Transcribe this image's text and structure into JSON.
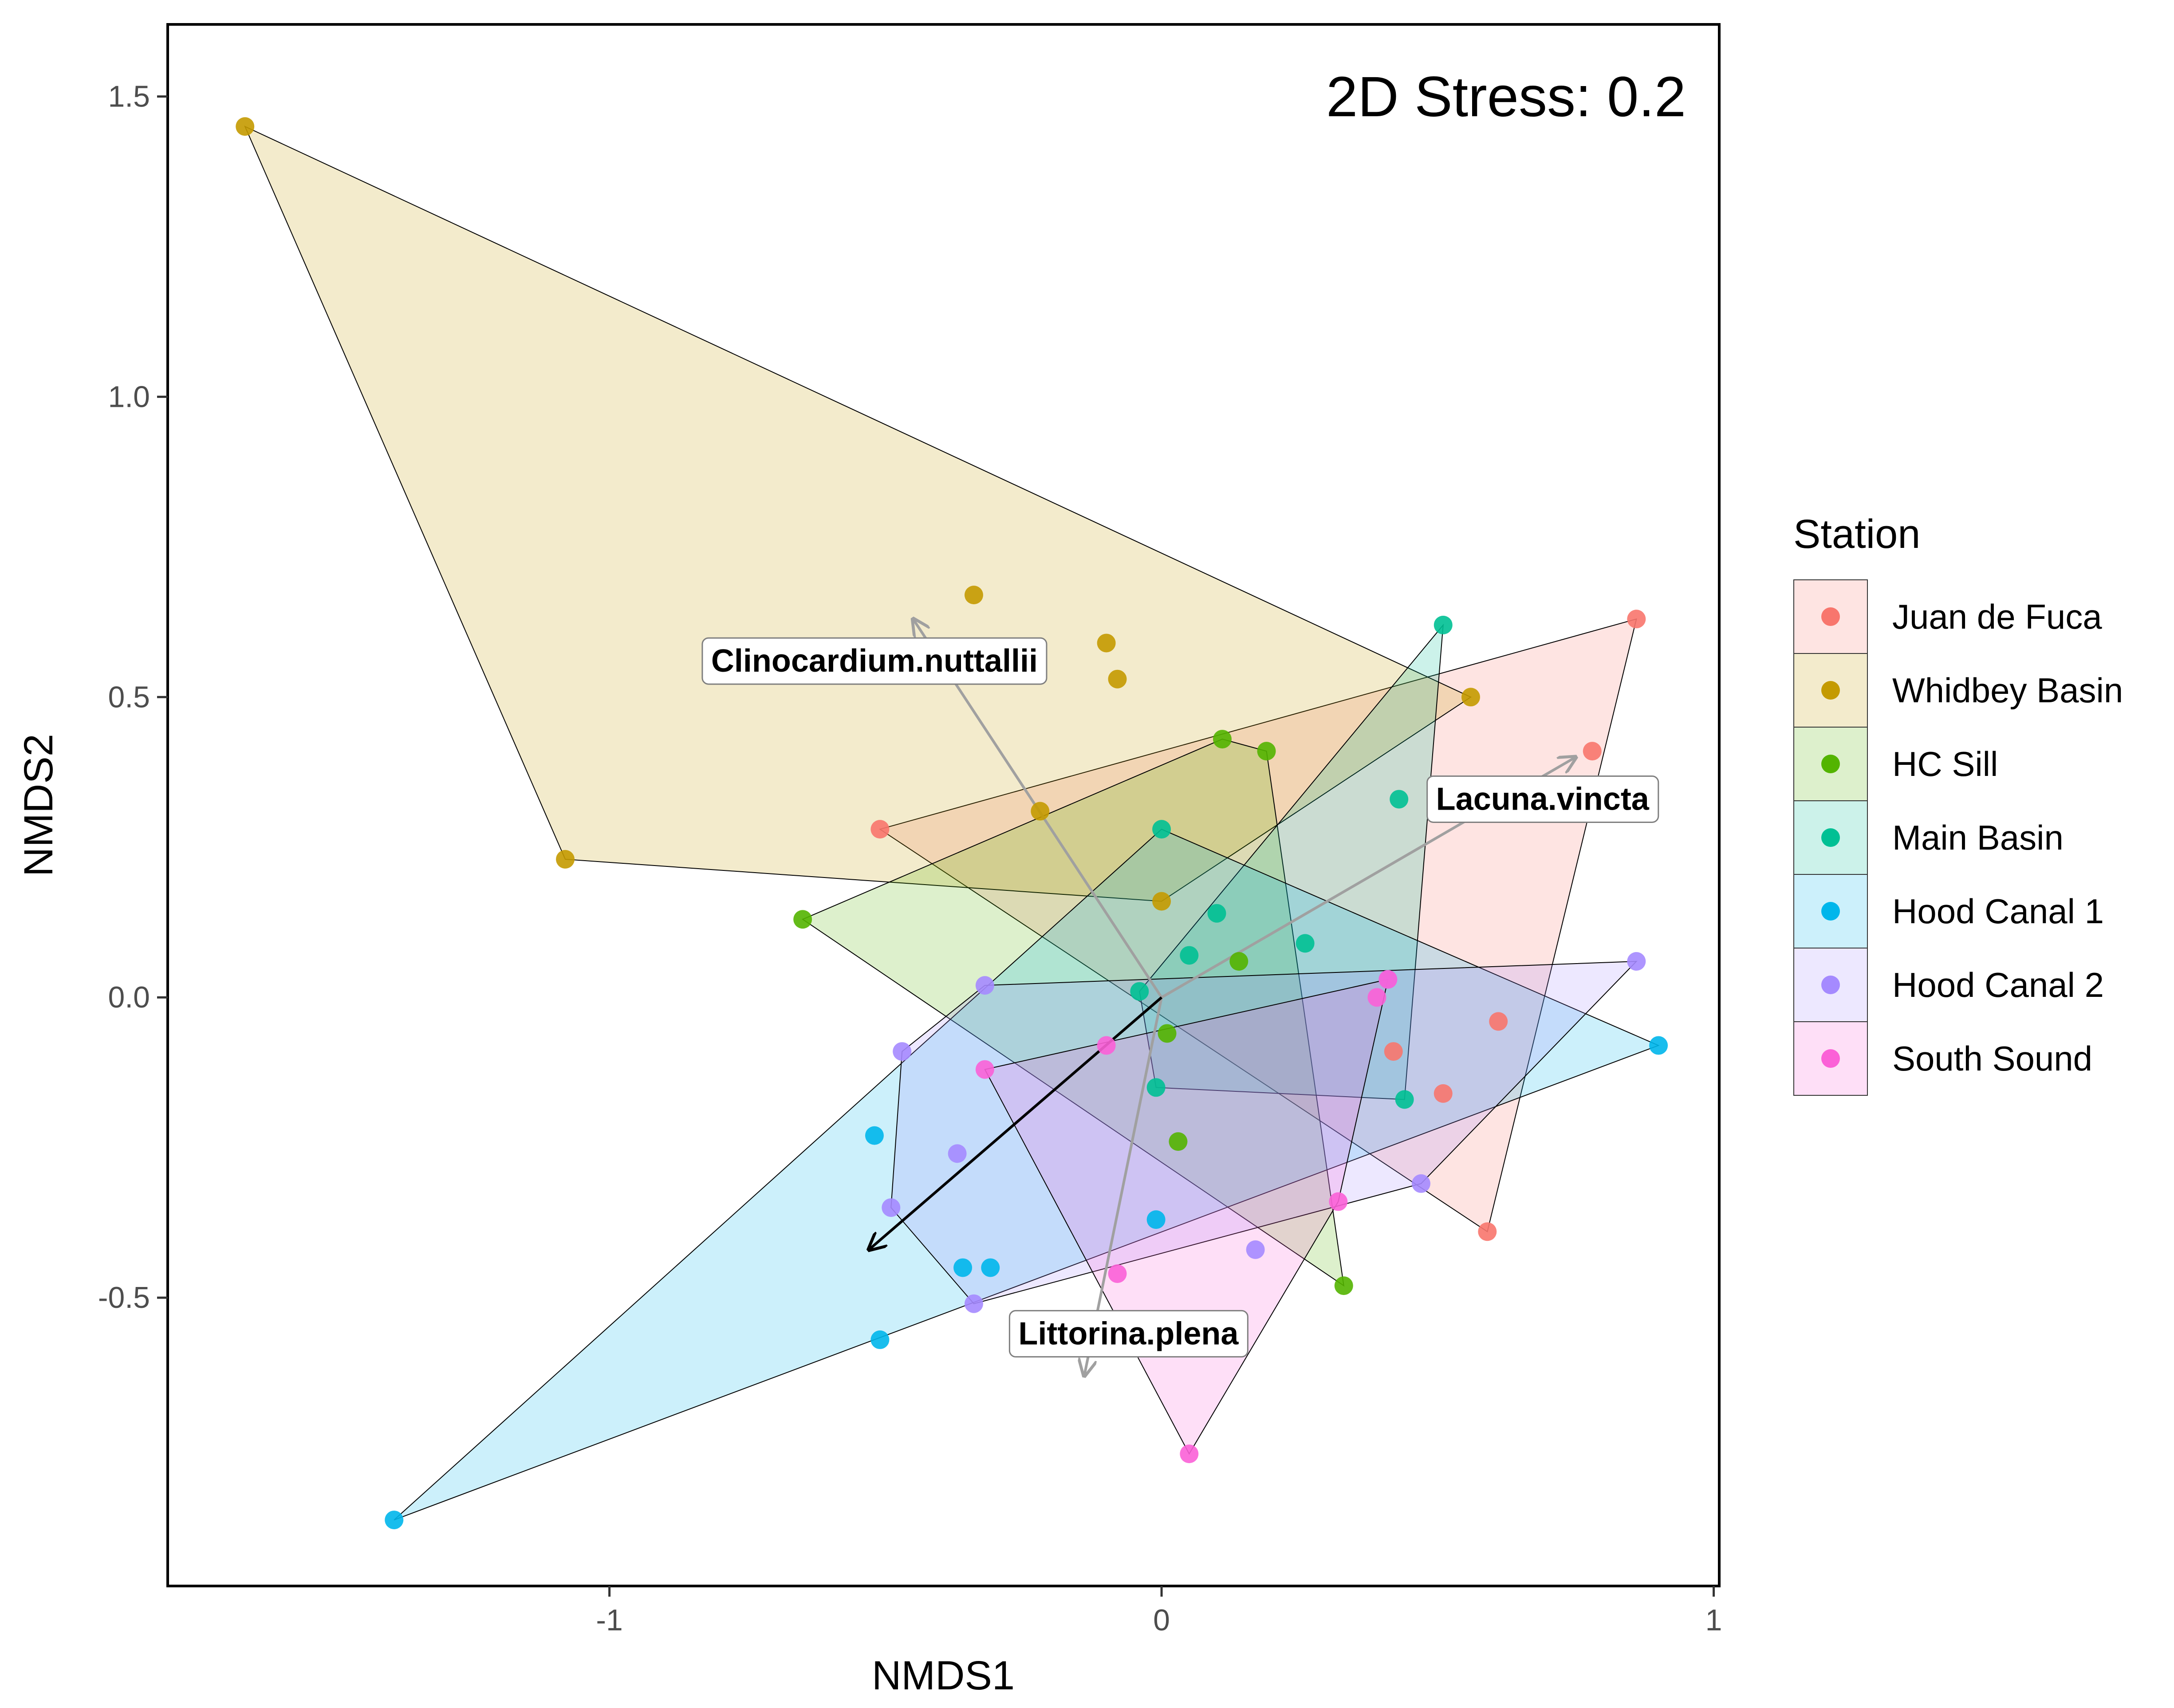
{
  "chart_data": {
    "type": "scatter",
    "subtype": "nmds-ordination-with-convex-hulls",
    "annotation": "2D Stress: 0.2",
    "xlabel": "NMDS1",
    "ylabel": "NMDS2",
    "xlim": [
      -1.8,
      1.01
    ],
    "ylim": [
      -0.98,
      1.62
    ],
    "x_ticks": [
      -1,
      0,
      1
    ],
    "x_tick_labels": [
      "-1",
      "0",
      "1"
    ],
    "y_ticks": [
      -0.5,
      0.0,
      0.5,
      1.0,
      1.5
    ],
    "y_tick_labels": [
      "-0.5",
      "0.0",
      "0.5",
      "1.0",
      "1.5"
    ],
    "grid": false,
    "legend": {
      "title": "Station",
      "position": "right"
    },
    "series": [
      {
        "name": "Juan de Fuca",
        "color": "#F8766D",
        "points": [
          [
            0.86,
            0.63
          ],
          [
            0.78,
            0.41
          ],
          [
            -0.51,
            0.28
          ],
          [
            0.61,
            -0.04
          ],
          [
            0.51,
            -0.16
          ],
          [
            0.42,
            -0.09
          ],
          [
            0.59,
            -0.39
          ]
        ],
        "hull": [
          [
            0.86,
            0.63
          ],
          [
            0.59,
            -0.39
          ],
          [
            -0.51,
            0.28
          ]
        ]
      },
      {
        "name": "Whidbey Basin",
        "color": "#C49A00",
        "points": [
          [
            -1.66,
            1.45
          ],
          [
            -1.08,
            0.23
          ],
          [
            -0.34,
            0.67
          ],
          [
            -0.1,
            0.59
          ],
          [
            -0.08,
            0.53
          ],
          [
            -0.22,
            0.31
          ],
          [
            0.56,
            0.5
          ],
          [
            0.0,
            0.16
          ]
        ],
        "hull": [
          [
            -1.66,
            1.45
          ],
          [
            0.56,
            0.5
          ],
          [
            0.0,
            0.16
          ],
          [
            -1.08,
            0.23
          ]
        ]
      },
      {
        "name": "HC Sill",
        "color": "#53B400",
        "points": [
          [
            -0.65,
            0.13
          ],
          [
            0.11,
            0.43
          ],
          [
            0.19,
            0.41
          ],
          [
            0.14,
            0.06
          ],
          [
            0.01,
            -0.06
          ],
          [
            0.03,
            -0.24
          ],
          [
            0.33,
            -0.48
          ]
        ],
        "hull": [
          [
            -0.65,
            0.13
          ],
          [
            0.11,
            0.43
          ],
          [
            0.19,
            0.41
          ],
          [
            0.33,
            -0.48
          ]
        ]
      },
      {
        "name": "Main Basin",
        "color": "#00C094",
        "points": [
          [
            0.51,
            0.62
          ],
          [
            0.43,
            0.33
          ],
          [
            0.0,
            0.28
          ],
          [
            0.1,
            0.14
          ],
          [
            0.05,
            0.07
          ],
          [
            0.26,
            0.09
          ],
          [
            -0.04,
            0.01
          ],
          [
            -0.01,
            -0.15
          ],
          [
            0.44,
            -0.17
          ]
        ],
        "hull": [
          [
            0.51,
            0.62
          ],
          [
            0.44,
            -0.17
          ],
          [
            -0.01,
            -0.15
          ],
          [
            -0.04,
            0.01
          ]
        ]
      },
      {
        "name": "Hood Canal 1",
        "color": "#00B6EB",
        "points": [
          [
            -1.39,
            -0.87
          ],
          [
            -0.52,
            -0.23
          ],
          [
            -0.51,
            -0.57
          ],
          [
            -0.36,
            -0.45
          ],
          [
            -0.31,
            -0.45
          ],
          [
            -0.01,
            -0.37
          ],
          [
            0.9,
            -0.08
          ]
        ],
        "hull": [
          [
            -1.39,
            -0.87
          ],
          [
            0.9,
            -0.08
          ],
          [
            0.0,
            0.28
          ]
        ]
      },
      {
        "name": "Hood Canal 2",
        "color": "#A58AFF",
        "points": [
          [
            -0.47,
            -0.09
          ],
          [
            -0.32,
            0.02
          ],
          [
            -0.37,
            -0.26
          ],
          [
            -0.49,
            -0.35
          ],
          [
            -0.34,
            -0.51
          ],
          [
            0.17,
            -0.42
          ],
          [
            0.47,
            -0.31
          ],
          [
            0.86,
            0.06
          ],
          [
            0.41,
            0.03
          ]
        ],
        "hull": [
          [
            -0.32,
            0.02
          ],
          [
            0.86,
            0.06
          ],
          [
            0.47,
            -0.31
          ],
          [
            -0.34,
            -0.51
          ],
          [
            -0.49,
            -0.35
          ],
          [
            -0.47,
            -0.09
          ]
        ]
      },
      {
        "name": "South Sound",
        "color": "#FB61D7",
        "points": [
          [
            0.41,
            0.03
          ],
          [
            0.39,
            0.0
          ],
          [
            -0.1,
            -0.08
          ],
          [
            -0.32,
            -0.12
          ],
          [
            0.32,
            -0.34
          ],
          [
            -0.08,
            -0.46
          ],
          [
            0.05,
            -0.76
          ]
        ],
        "hull": [
          [
            0.41,
            0.03
          ],
          [
            0.32,
            -0.34
          ],
          [
            0.05,
            -0.76
          ],
          [
            -0.32,
            -0.12
          ]
        ]
      }
    ],
    "vectors": [
      {
        "label": "Clinocardium.nuttallii",
        "end": [
          -0.45,
          0.63
        ],
        "label_at": [
          -0.52,
          0.56
        ],
        "color": "#A0A0A0",
        "label_shown": true
      },
      {
        "label": "Lacuna.vincta",
        "end": [
          0.75,
          0.4
        ],
        "label_at": [
          0.69,
          0.33
        ],
        "color": "#A0A0A0",
        "label_shown": true
      },
      {
        "label": "Littorina.plena",
        "end": [
          -0.14,
          -0.63
        ],
        "label_at": [
          -0.06,
          -0.56
        ],
        "color": "#A0A0A0",
        "label_shown": true
      },
      {
        "label": "",
        "end": [
          -0.53,
          -0.42
        ],
        "label_at": [
          0,
          0
        ],
        "color": "#000000",
        "label_shown": false
      }
    ]
  }
}
